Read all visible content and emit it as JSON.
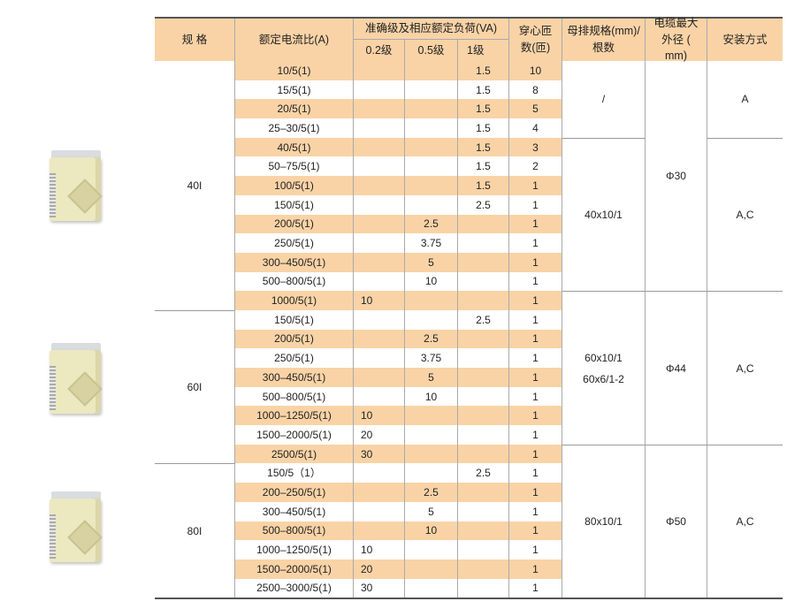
{
  "header": {
    "spec": "规 格",
    "ratio": "额定电流比(A)",
    "accuracy": "准确级及相应额定负荷(VA)",
    "c02": "0.2级",
    "c05": "0.5级",
    "c1": "1级",
    "turns": "穿心匝数(匝)",
    "busbar": "母排规格(mm)/根数",
    "cable": "电缆最大外径 ( mm)",
    "mount": "安装方式"
  },
  "colors": {
    "shade": "#f9d3a6"
  },
  "specs": [
    {
      "label": "40I",
      "rows": [
        1,
        13
      ]
    },
    {
      "label": "60I",
      "rows": [
        14,
        21
      ]
    },
    {
      "label": "80I",
      "rows": [
        22,
        28
      ]
    }
  ],
  "busbar": [
    {
      "label": "/",
      "rows": [
        1,
        4
      ]
    },
    {
      "label": "40x10/1",
      "rows": [
        5,
        12
      ]
    },
    {
      "label": "60x10/1\n60x6/1-2",
      "rows": [
        13,
        20
      ]
    },
    {
      "label": "80x10/1",
      "rows": [
        21,
        28
      ]
    }
  ],
  "cable": [
    {
      "label": "Φ30",
      "rows": [
        1,
        12
      ]
    },
    {
      "label": "Φ44",
      "rows": [
        13,
        20
      ]
    },
    {
      "label": "Φ50",
      "rows": [
        21,
        28
      ]
    }
  ],
  "mount": [
    {
      "label": "A",
      "rows": [
        1,
        4
      ]
    },
    {
      "label": "A,C",
      "rows": [
        5,
        12
      ]
    },
    {
      "label": "A,C",
      "rows": [
        13,
        20
      ]
    },
    {
      "label": "A,C",
      "rows": [
        21,
        28
      ]
    }
  ],
  "rows": [
    [
      "10/5(1)",
      "",
      "",
      "1.5",
      "10"
    ],
    [
      "15/5(1)",
      "",
      "",
      "1.5",
      "8"
    ],
    [
      "20/5(1)",
      "",
      "",
      "1.5",
      "5"
    ],
    [
      "25–30/5(1)",
      "",
      "",
      "1.5",
      "4"
    ],
    [
      "40/5(1)",
      "",
      "",
      "1.5",
      "3"
    ],
    [
      "50–75/5(1)",
      "",
      "",
      "1.5",
      "2"
    ],
    [
      "100/5(1)",
      "",
      "",
      "1.5",
      "1"
    ],
    [
      "150/5(1)",
      "",
      "",
      "2.5",
      "1"
    ],
    [
      "200/5(1)",
      "",
      "2.5",
      "",
      "1"
    ],
    [
      "250/5(1)",
      "",
      "3.75",
      "",
      "1"
    ],
    [
      "300–450/5(1)",
      "",
      "5",
      "",
      "1"
    ],
    [
      "500–800/5(1)",
      "",
      "10",
      "",
      "1"
    ],
    [
      "1000/5(1)",
      "10",
      "",
      "",
      "1"
    ],
    [
      "150/5(1)",
      "",
      "",
      "2.5",
      "1"
    ],
    [
      "200/5(1)",
      "",
      "2.5",
      "",
      "1"
    ],
    [
      "250/5(1)",
      "",
      "3.75",
      "",
      "1"
    ],
    [
      "300–450/5(1)",
      "",
      "5",
      "",
      "1"
    ],
    [
      "500–800/5(1)",
      "",
      "10",
      "",
      "1"
    ],
    [
      "1000–1250/5(1)",
      "10",
      "",
      "",
      "1"
    ],
    [
      "1500–2000/5(1)",
      "20",
      "",
      "",
      "1"
    ],
    [
      "2500/5(1)",
      "30",
      "",
      "",
      "1"
    ],
    [
      "150/5（1）",
      "",
      "",
      "2.5",
      "1"
    ],
    [
      "200–250/5(1)",
      "",
      "2.5",
      "",
      "1"
    ],
    [
      "300–450/5(1)",
      "",
      "5",
      "",
      "1"
    ],
    [
      "500–800/5(1)",
      "",
      "10",
      "",
      "1"
    ],
    [
      "1000–1250/5(1)",
      "10",
      "",
      "",
      "1"
    ],
    [
      "1500–2000/5(1)",
      "20",
      "",
      "",
      "1"
    ],
    [
      "2500–3000/5(1)",
      "30",
      "",
      "",
      "1"
    ]
  ]
}
